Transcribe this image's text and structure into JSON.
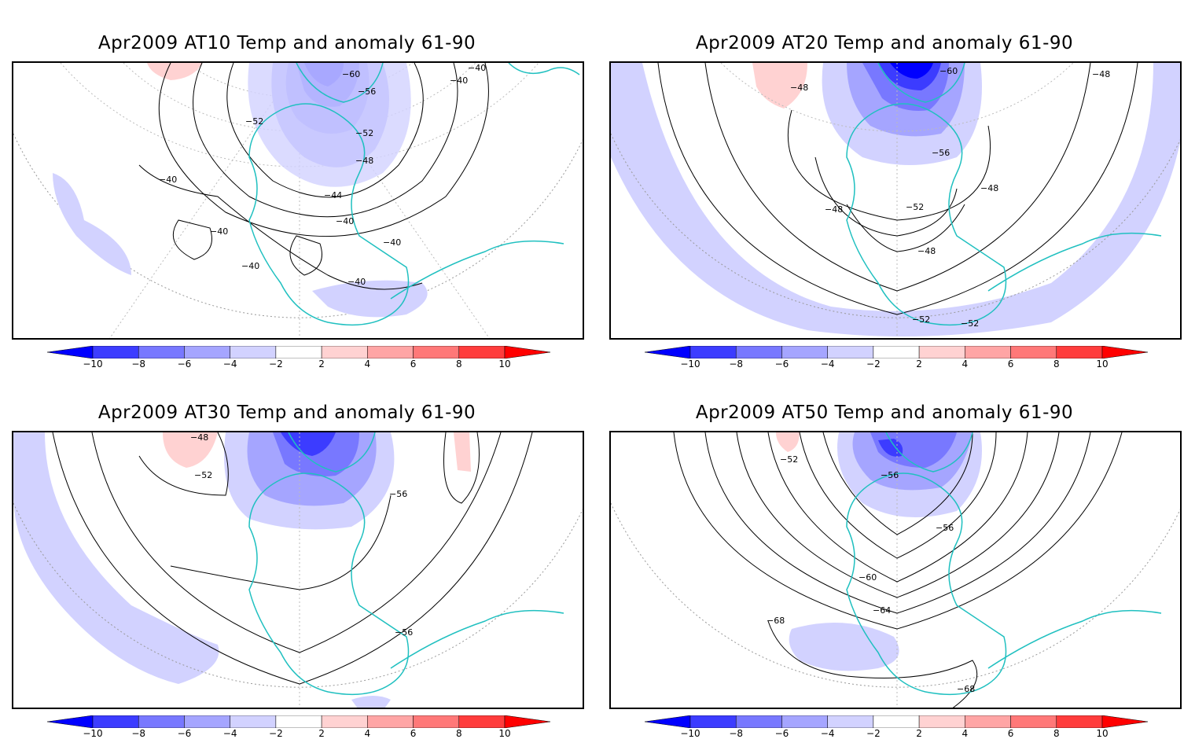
{
  "panels": [
    {
      "title": "Apr2009 AT10 Temp and anomaly 61-90",
      "contour_labels": [
        "-60",
        "-56",
        "-52",
        "-52",
        "-48",
        "-44",
        "-40",
        "-40",
        "-40",
        "-40",
        "-40",
        "-40",
        "-40",
        "-40"
      ]
    },
    {
      "title": "Apr2009 AT20 Temp and anomaly 61-90",
      "contour_labels": [
        "-60",
        "-48",
        "-48",
        "-56",
        "-48",
        "-52",
        "-48",
        "-48",
        "-52",
        "-52"
      ]
    },
    {
      "title": "Apr2009 AT30 Temp and anomaly 61-90",
      "contour_labels": [
        "-48",
        "-52",
        "-56",
        "-56"
      ]
    },
    {
      "title": "Apr2009 AT50 Temp and anomaly 61-90",
      "contour_labels": [
        "-52",
        "-56",
        "-56",
        "-60",
        "-64",
        "-68",
        "-68"
      ]
    }
  ],
  "colorbar": {
    "ticks": [
      "-10",
      "-8",
      "-6",
      "-4",
      "-2",
      "2",
      "4",
      "6",
      "8",
      "10"
    ],
    "colors": [
      "#0000ff",
      "#3c3cff",
      "#7878ff",
      "#a5a5ff",
      "#d2d2ff",
      "#ffffff",
      "#ffd2d2",
      "#ffa5a5",
      "#ff7878",
      "#ff3c3c",
      "#ff0000"
    ]
  },
  "colors": {
    "coastline": "#20c0c0",
    "contour": "#000000",
    "grid": "#999999"
  }
}
